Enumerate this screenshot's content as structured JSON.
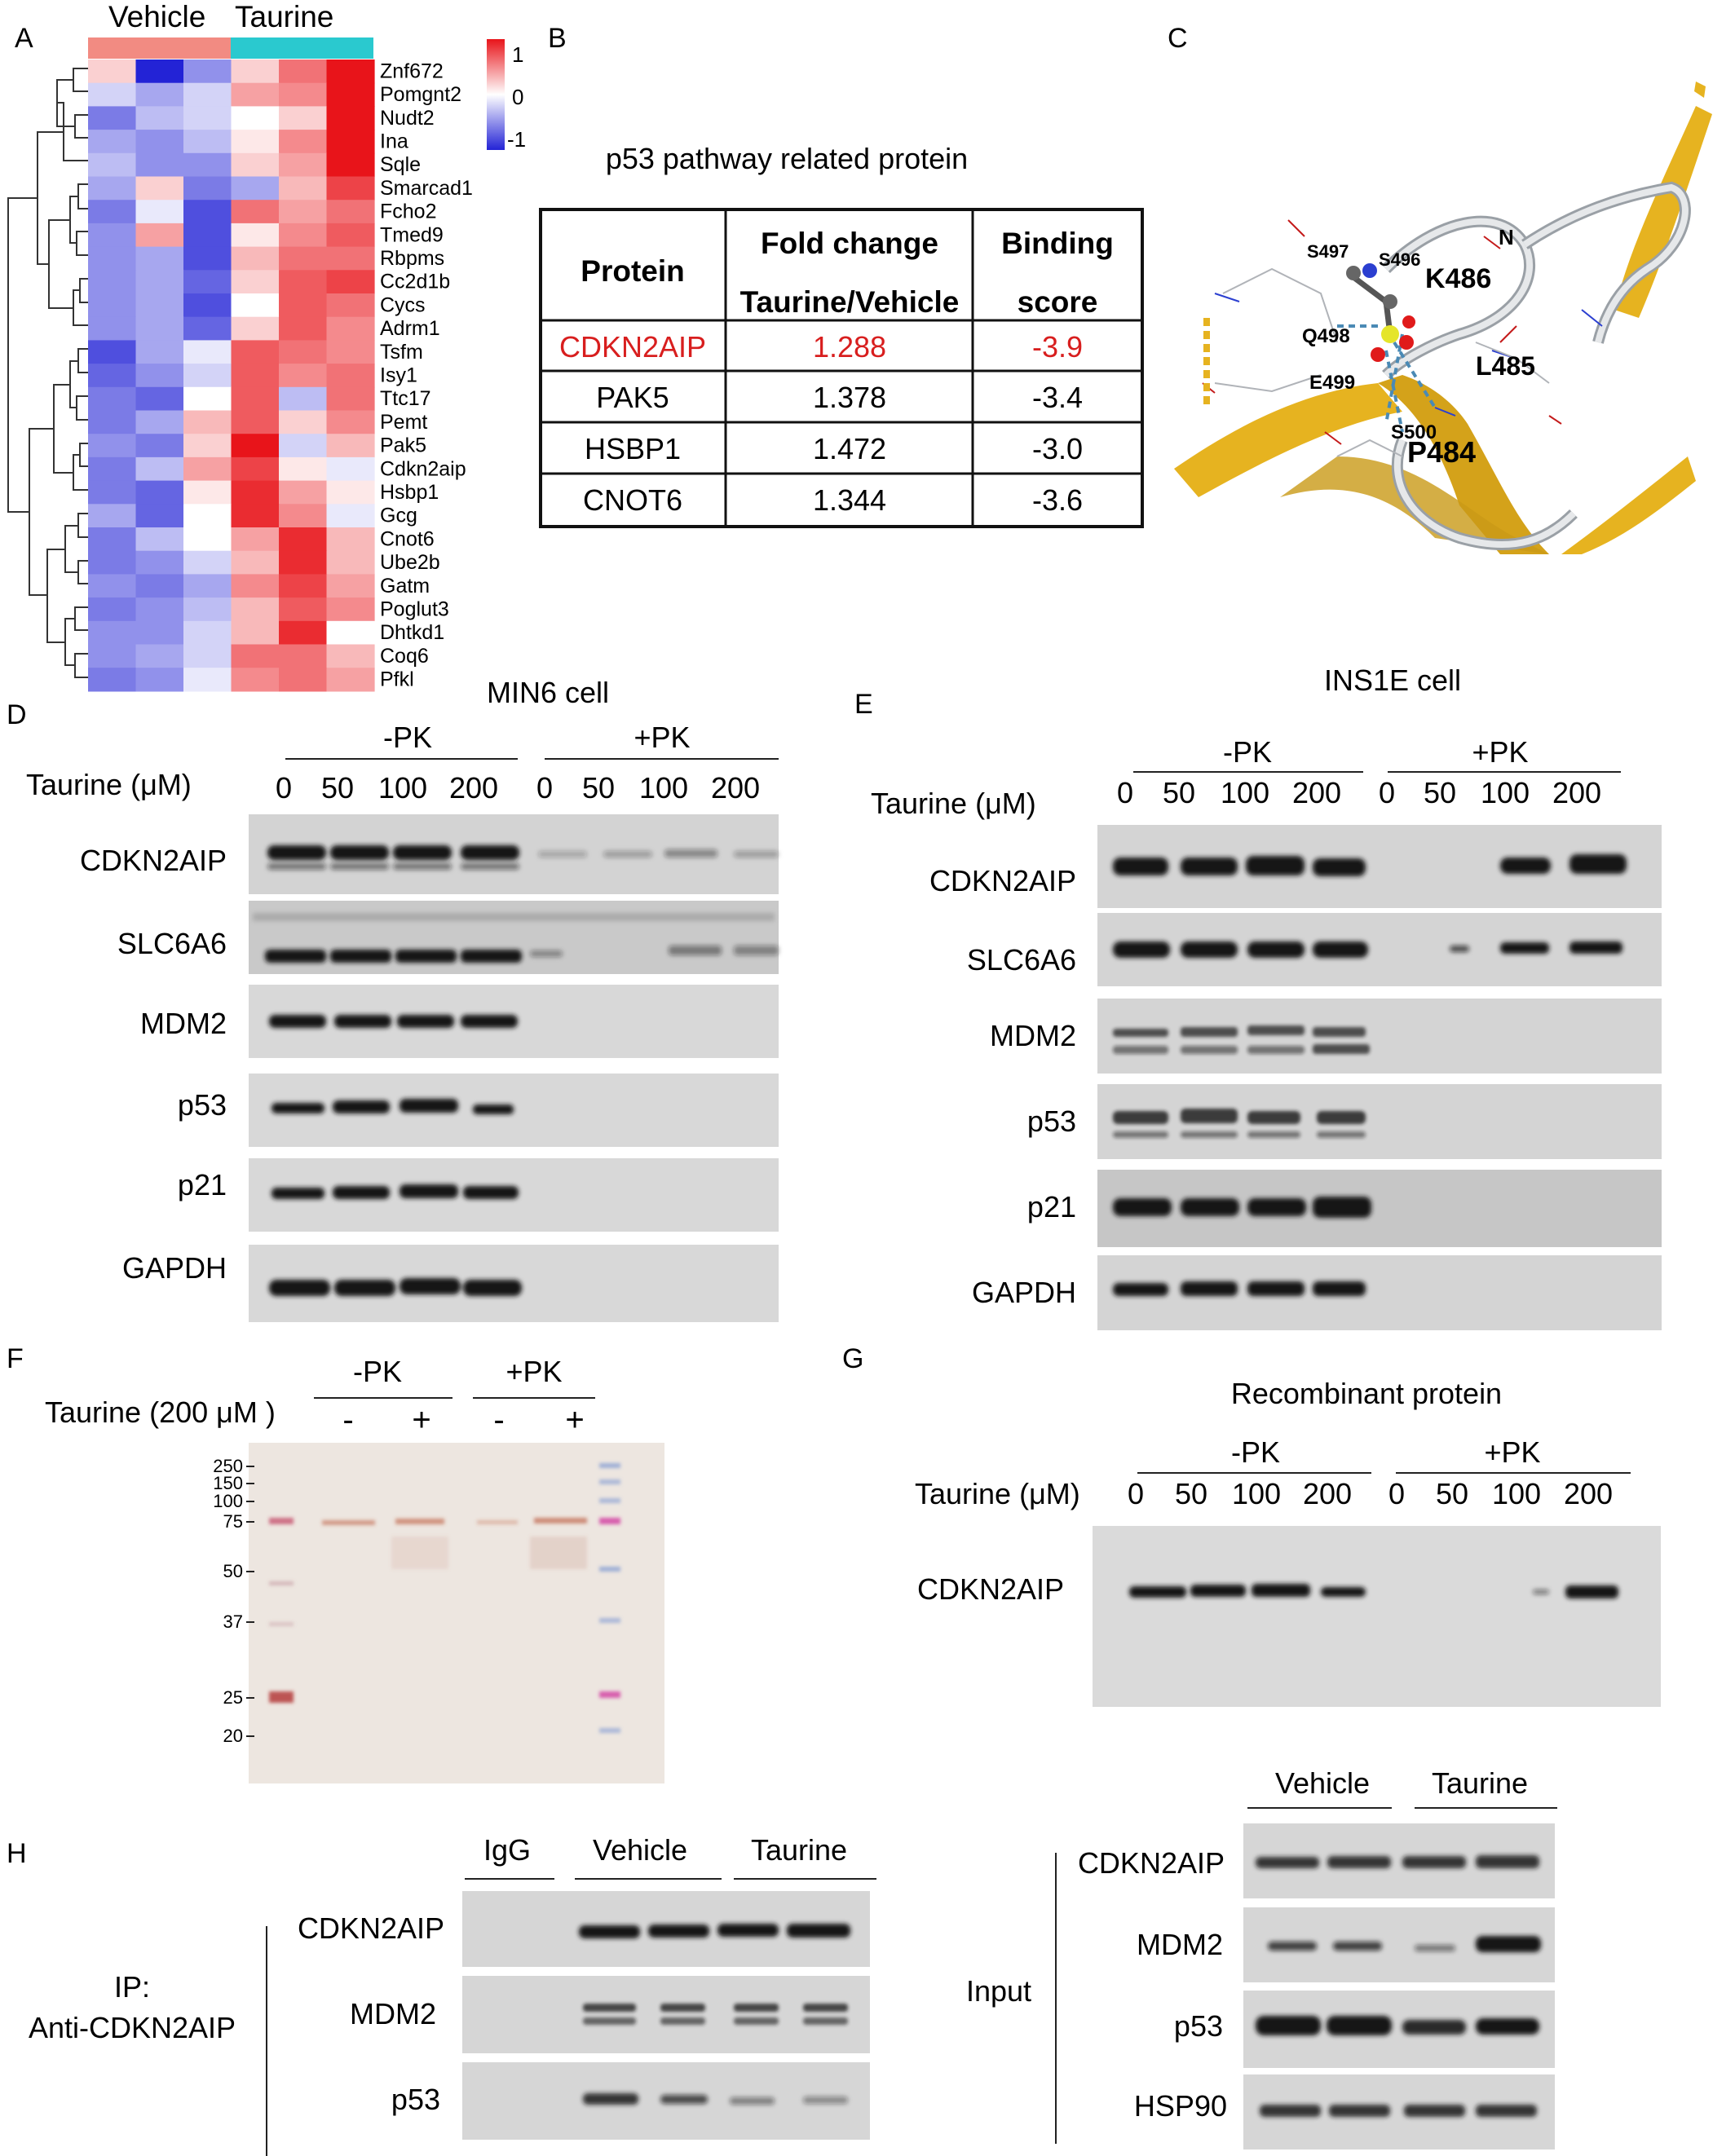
{
  "panels": {
    "A": "A",
    "B": "B",
    "C": "C",
    "D": "D",
    "E": "E",
    "F": "F",
    "G": "G",
    "H": "H"
  },
  "heatmap": {
    "groups": [
      "Vehicle",
      "Taurine"
    ],
    "group_colors": [
      "#f28b82",
      "#2ac9cf"
    ],
    "colorbar_ticks": [
      "1",
      "0",
      "-1"
    ],
    "genes": [
      "Znf672",
      "Pomgnt2",
      "Nudt2",
      "Ina",
      "Sqle",
      "Smarcad1",
      "Fcho2",
      "Tmed9",
      "Rbpms",
      "Cc2d1b",
      "Cycs",
      "Adrm1",
      "Tsfm",
      "Isy1",
      "Ttc17",
      "Pemt",
      "Pak5",
      "Cdkn2aip",
      "Hsbp1",
      "Gcg",
      "Cnot6",
      "Ube2b",
      "Gatm",
      "Poglut3",
      "Dhtkd1",
      "Coq6",
      "Pfkl"
    ],
    "values": [
      [
        0.2,
        -1.0,
        -0.5,
        0.2,
        0.6,
        1.0
      ],
      [
        -0.2,
        -0.4,
        -0.2,
        0.4,
        0.5,
        1.0
      ],
      [
        -0.6,
        -0.3,
        -0.2,
        0.0,
        0.2,
        1.0
      ],
      [
        -0.4,
        -0.5,
        -0.3,
        0.1,
        0.5,
        1.0
      ],
      [
        -0.3,
        -0.5,
        -0.5,
        0.2,
        0.4,
        1.0
      ],
      [
        -0.4,
        0.2,
        -0.6,
        -0.4,
        0.3,
        0.8
      ],
      [
        -0.6,
        -0.1,
        -0.8,
        0.6,
        0.4,
        0.6
      ],
      [
        -0.5,
        0.4,
        -0.8,
        0.1,
        0.5,
        0.7
      ],
      [
        -0.5,
        -0.4,
        -0.8,
        0.3,
        0.6,
        0.6
      ],
      [
        -0.5,
        -0.4,
        -0.7,
        0.2,
        0.7,
        0.8
      ],
      [
        -0.5,
        -0.4,
        -0.8,
        0.0,
        0.7,
        0.6
      ],
      [
        -0.5,
        -0.4,
        -0.7,
        0.2,
        0.7,
        0.5
      ],
      [
        -0.8,
        -0.4,
        -0.1,
        0.7,
        0.6,
        0.5
      ],
      [
        -0.7,
        -0.5,
        -0.2,
        0.7,
        0.5,
        0.6
      ],
      [
        -0.6,
        -0.7,
        0.0,
        0.7,
        -0.3,
        0.6
      ],
      [
        -0.6,
        -0.4,
        0.3,
        0.7,
        0.2,
        0.5
      ],
      [
        -0.5,
        -0.6,
        0.2,
        1.0,
        -0.2,
        0.3
      ],
      [
        -0.6,
        -0.3,
        0.4,
        0.8,
        0.1,
        -0.1
      ],
      [
        -0.6,
        -0.7,
        0.1,
        0.9,
        0.4,
        0.1
      ],
      [
        -0.4,
        -0.7,
        0.0,
        0.9,
        0.5,
        -0.1
      ],
      [
        -0.6,
        -0.3,
        0.0,
        0.4,
        0.9,
        0.3
      ],
      [
        -0.6,
        -0.5,
        -0.2,
        0.3,
        0.9,
        0.3
      ],
      [
        -0.5,
        -0.6,
        -0.4,
        0.5,
        0.8,
        0.4
      ],
      [
        -0.6,
        -0.5,
        -0.3,
        0.3,
        0.7,
        0.5
      ],
      [
        -0.5,
        -0.5,
        -0.2,
        0.3,
        0.9,
        0.0
      ],
      [
        -0.5,
        -0.4,
        -0.2,
        0.6,
        0.6,
        0.3
      ],
      [
        -0.6,
        -0.5,
        -0.1,
        0.5,
        0.6,
        0.4
      ]
    ]
  },
  "table": {
    "title": "p53 pathway related protein",
    "headers": [
      "Protein",
      "Fold change",
      "Taurine/Vehicle",
      "Binding",
      "score"
    ],
    "rows": [
      {
        "protein": "CDKN2AIP",
        "fold": "1.288",
        "score": "-3.9",
        "highlight": true
      },
      {
        "protein": "PAK5",
        "fold": "1.378",
        "score": "-3.4",
        "highlight": false
      },
      {
        "protein": "HSBP1",
        "fold": "1.472",
        "score": "-3.0",
        "highlight": false
      },
      {
        "protein": "CNOT6",
        "fold": "1.344",
        "score": "-3.6",
        "highlight": false
      }
    ],
    "highlight_color": "#d81e1e"
  },
  "structure": {
    "labels": [
      "N",
      "S497",
      "S496",
      "K486",
      "Q498",
      "E499",
      "L485",
      "S500",
      "P484"
    ]
  },
  "blot_D": {
    "cell": "MIN6 cell",
    "conditions": [
      "-PK",
      "+PK"
    ],
    "axis": "Taurine (μM)",
    "doses": [
      "0",
      "50",
      "100",
      "200",
      "0",
      "50",
      "100",
      "200"
    ],
    "proteins": [
      "CDKN2AIP",
      "SLC6A6",
      "MDM2",
      "p53",
      "p21",
      "GAPDH"
    ]
  },
  "blot_E": {
    "cell": "INS1E cell",
    "conditions": [
      "-PK",
      "+PK"
    ],
    "axis": "Taurine (μM)",
    "doses": [
      "0",
      "50",
      "100",
      "200",
      "0",
      "50",
      "100",
      "200"
    ],
    "proteins": [
      "CDKN2AIP",
      "SLC6A6",
      "MDM2",
      "p53",
      "p21",
      "GAPDH"
    ]
  },
  "gel_F": {
    "conditions": [
      "-PK",
      "+PK"
    ],
    "axis": "Taurine (200 μM )",
    "signs": [
      "-",
      "+",
      "-",
      "+"
    ],
    "markers": [
      "250",
      "150",
      "100",
      "75",
      "50",
      "37",
      "25",
      "20"
    ]
  },
  "blot_G": {
    "title": "Recombinant protein",
    "conditions": [
      "-PK",
      "+PK"
    ],
    "axis": "Taurine (μM)",
    "doses": [
      "0",
      "50",
      "100",
      "200",
      "0",
      "50",
      "100",
      "200"
    ],
    "protein": "CDKN2AIP"
  },
  "blot_H": {
    "ip_label_1": "IP:",
    "ip_label_2": "Anti-CDKN2AIP",
    "ip_groups": [
      "IgG",
      "Vehicle",
      "Taurine"
    ],
    "ip_proteins": [
      "CDKN2AIP",
      "MDM2",
      "p53"
    ],
    "input_label": "Input",
    "input_groups": [
      "Vehicle",
      "Taurine"
    ],
    "input_proteins": [
      "CDKN2AIP",
      "MDM2",
      "p53",
      "HSP90"
    ]
  }
}
